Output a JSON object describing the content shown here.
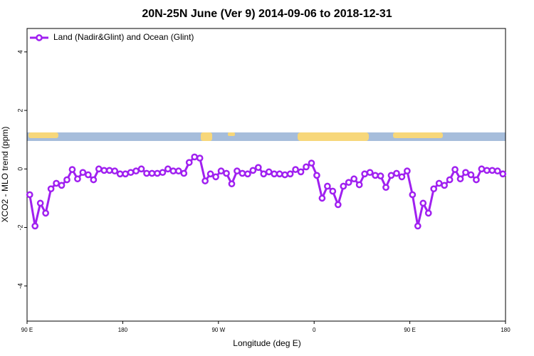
{
  "chart_data": {
    "type": "line",
    "title": "20N-25N June (Ver 9)   2014-09-06 to 2018-12-31",
    "xlabel": "Longitude (deg E)",
    "ylabel": "XCO2 - MLO trend (ppm)",
    "x": [
      92.5,
      97.5,
      102.5,
      107.5,
      112.5,
      117.5,
      122.5,
      127.5,
      132.5,
      137.5,
      142.5,
      147.5,
      152.5,
      157.5,
      162.5,
      167.5,
      172.5,
      177.5,
      182.5,
      187.5,
      192.5,
      197.5,
      202.5,
      207.5,
      212.5,
      217.5,
      222.5,
      227.5,
      232.5,
      237.5,
      242.5,
      247.5,
      252.5,
      257.5,
      262.5,
      267.5,
      272.5,
      277.5,
      282.5,
      287.5,
      292.5,
      297.5,
      302.5,
      307.5,
      312.5,
      317.5,
      322.5,
      327.5,
      332.5,
      337.5,
      342.5,
      347.5,
      352.5,
      357.5,
      362.5,
      367.5,
      372.5,
      377.5,
      382.5,
      387.5,
      392.5,
      397.5,
      402.5,
      407.5,
      412.5,
      417.5,
      422.5,
      427.5,
      432.5,
      437.5,
      442.5,
      447.5,
      452.5,
      457.5,
      462.5,
      467.5,
      472.5,
      477.5,
      482.5,
      487.5,
      492.5,
      497.5,
      502.5,
      507.5,
      512.5,
      517.5,
      522.5,
      527.5,
      532.5,
      537.5
    ],
    "series": [
      {
        "name": "Land (Nadir&Glint) and Ocean (Glint)",
        "color": "#a020f0",
        "values": [
          -0.88,
          -1.95,
          -1.17,
          -1.51,
          -0.68,
          -0.49,
          -0.56,
          -0.37,
          -0.02,
          -0.34,
          -0.12,
          -0.2,
          -0.37,
          0,
          -0.05,
          -0.05,
          -0.07,
          -0.17,
          -0.17,
          -0.12,
          -0.07,
          0,
          -0.15,
          -0.15,
          -0.15,
          -0.12,
          0,
          -0.07,
          -0.07,
          -0.15,
          0.22,
          0.41,
          0.37,
          -0.41,
          -0.17,
          -0.27,
          -0.07,
          -0.15,
          -0.51,
          -0.07,
          -0.15,
          -0.17,
          -0.05,
          0.05,
          -0.17,
          -0.1,
          -0.17,
          -0.17,
          -0.2,
          -0.17,
          -0.02,
          -0.1,
          0.07,
          0.2,
          -0.22,
          -1.0,
          -0.59,
          -0.76,
          -1.22,
          -0.59,
          -0.46,
          -0.34,
          -0.54,
          -0.17,
          -0.12,
          -0.22,
          -0.24,
          -0.63,
          -0.22,
          -0.15,
          -0.27,
          -0.07,
          -0.88,
          -1.95,
          -1.17,
          -1.51,
          -0.68,
          -0.49,
          -0.56,
          -0.37,
          -0.02,
          -0.34,
          -0.12,
          -0.2,
          -0.37,
          0,
          -0.05,
          -0.05,
          -0.07,
          -0.17
        ]
      }
    ],
    "xlim": [
      90,
      540
    ],
    "xticks": [
      {
        "value": 90,
        "label": "90 E"
      },
      180,
      {
        "value": 270,
        "label": "90 W"
      },
      {
        "value": 360,
        "label": "0"
      },
      {
        "value": 450,
        "label": "90 E"
      },
      {
        "value": 540,
        "label": "180"
      }
    ],
    "ylim": [
      -5.2,
      4.8
    ],
    "yticks": [
      -4,
      -2,
      0,
      2,
      4
    ],
    "legend": "top-left"
  }
}
